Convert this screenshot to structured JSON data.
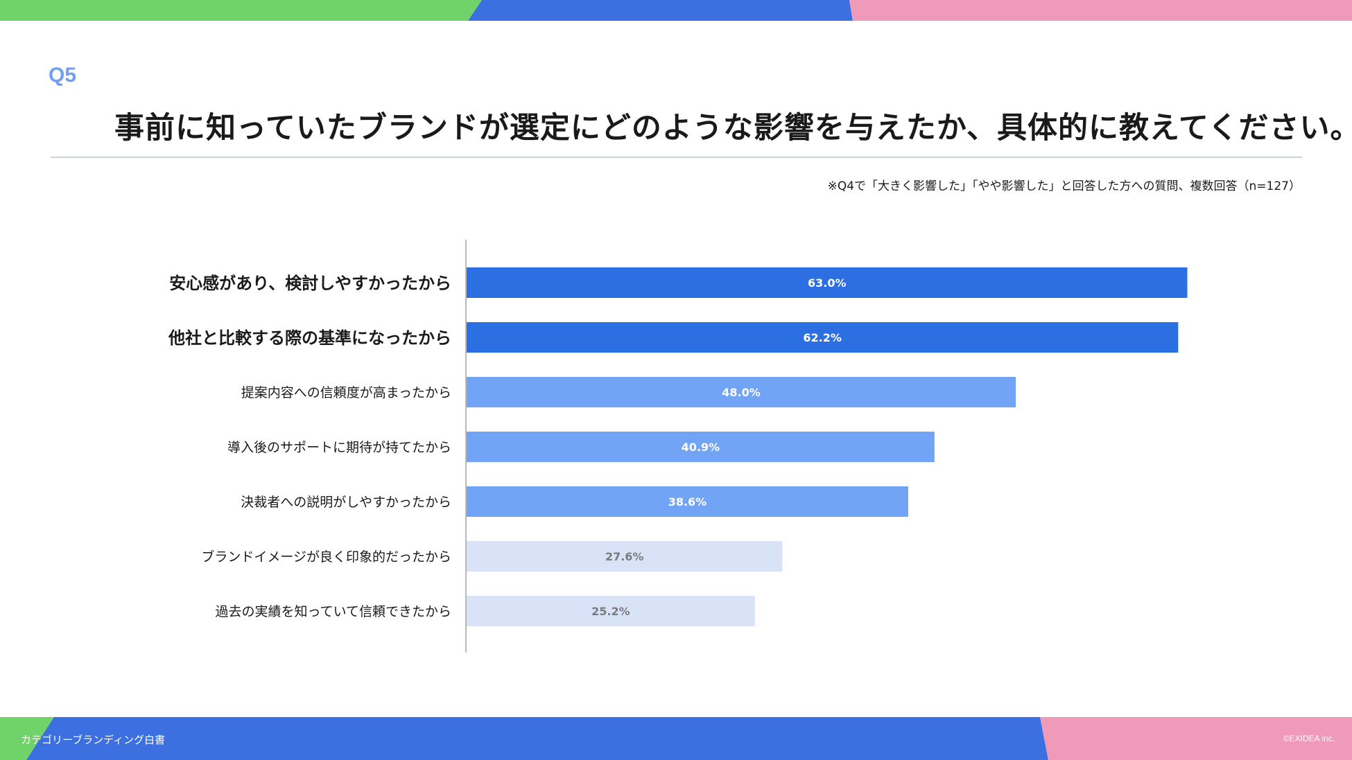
{
  "question": {
    "number": "Q5",
    "title": "事前に知っていたブランドが選定にどのような影響を与えたか、具体的に教えてください。",
    "note": "※Q4で「大きく影響した」「やや影響した」と回答した方への質問、複数回答（n=127）"
  },
  "footer": {
    "title": "カテゴリーブランディング白書",
    "copyright": "©EXIDEA inc."
  },
  "colors": {
    "green": "#6fd36a",
    "blue": "#3c6fdf",
    "pink": "#ee9ab8",
    "bar_top": "#2c6fe3",
    "bar_mid": "#72a4f5",
    "bar_low": "#d8e3f8"
  },
  "chart_data": {
    "type": "bar",
    "orientation": "horizontal",
    "unit": "%",
    "xlim": [
      0,
      100
    ],
    "categories": [
      "安心感があり、検討しやすかったから",
      "他社と比較する際の基準になったから",
      "提案内容への信頼度が高まったから",
      "導入後のサポートに期待が持てたから",
      "決裁者への説明がしやすかったから",
      "ブランドイメージが良く印象的だったから",
      "過去の実績を知っていて信頼できたから"
    ],
    "values": [
      63.0,
      62.2,
      48.0,
      40.9,
      38.6,
      27.6,
      25.2
    ],
    "value_labels": [
      "63.0%",
      "62.2%",
      "48.0%",
      "40.9%",
      "38.6%",
      "27.6%",
      "25.2%"
    ],
    "tiers": [
      "top",
      "top",
      "mid",
      "mid",
      "mid",
      "low",
      "low"
    ]
  }
}
